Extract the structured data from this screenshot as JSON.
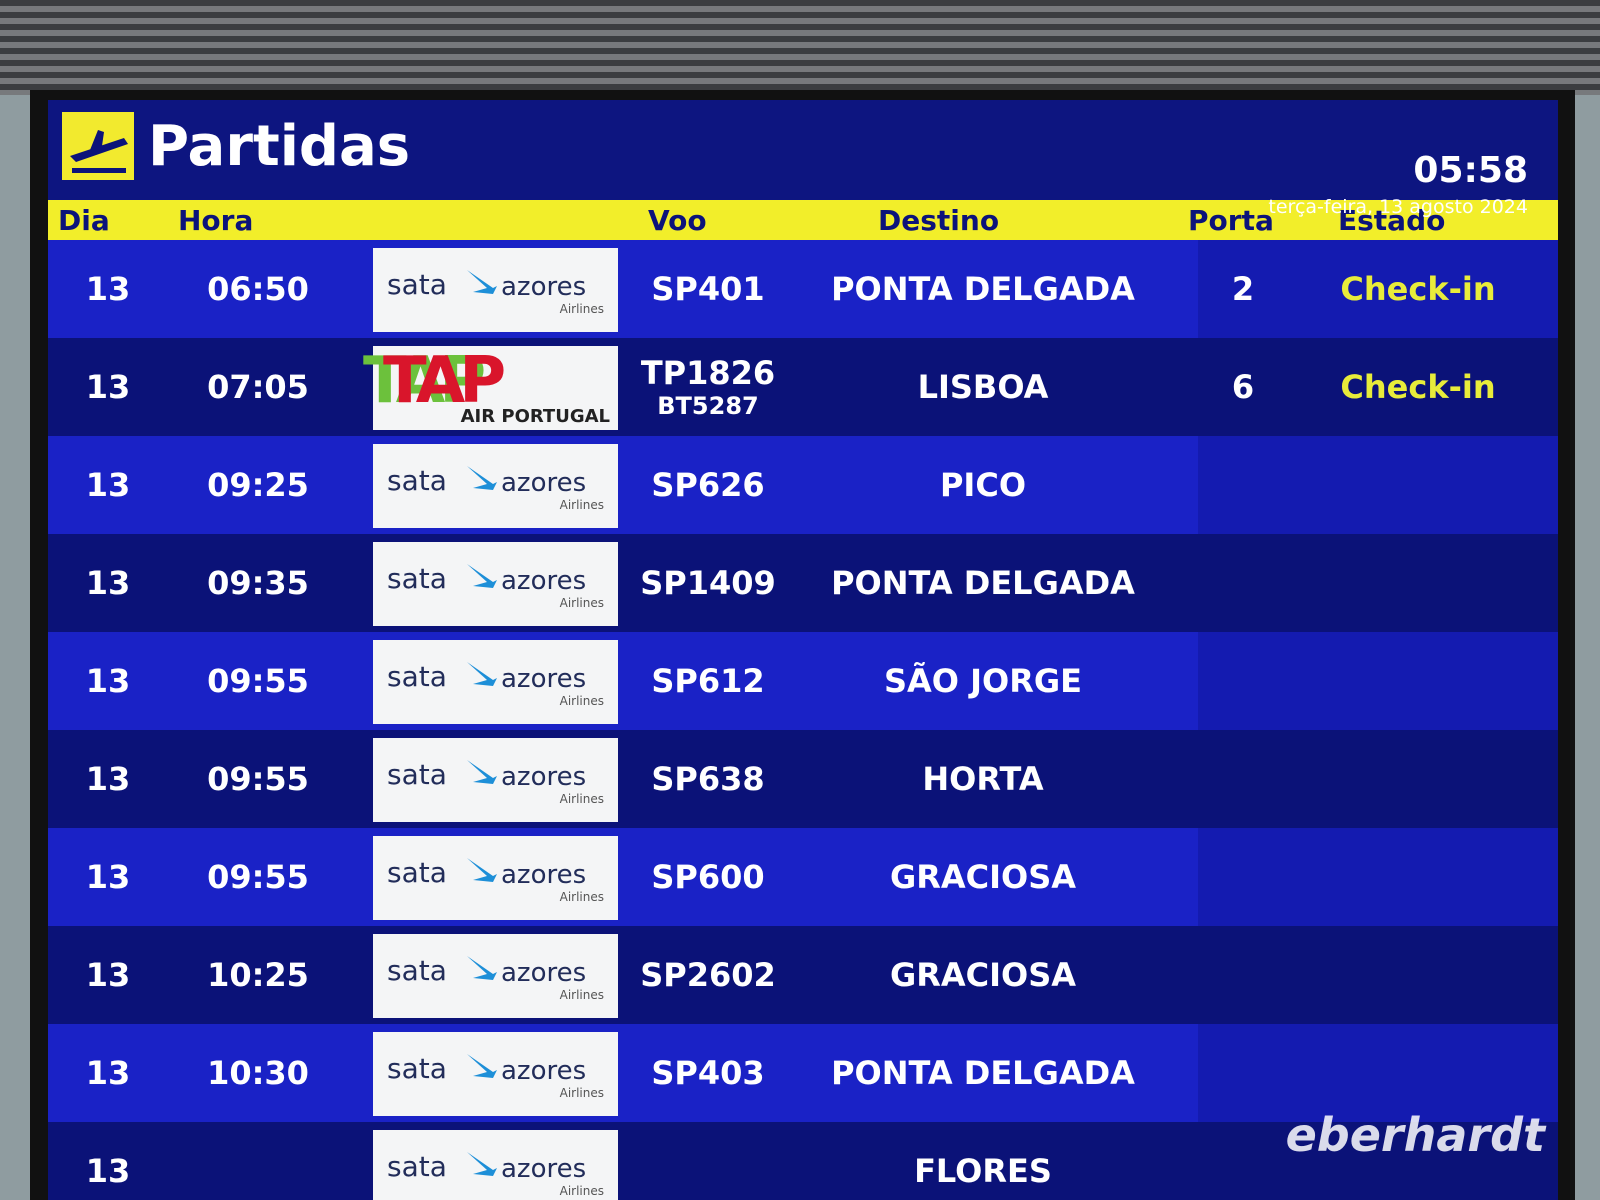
{
  "header": {
    "title": "Partidas",
    "time": "05:58",
    "date": "terça-feira, 13 agosto 2024"
  },
  "columns": [
    "Dia",
    "Hora",
    "Voo",
    "Destino",
    "Porta",
    "Estado"
  ],
  "rows": [
    {
      "day": "13",
      "time": "06:50",
      "logo": {
        "name": "sata",
        "brand": "azores",
        "sub": "Airlines"
      },
      "flights": [
        "SP401"
      ],
      "destination": "PONTA DELGADA",
      "gate": "2",
      "status": "Check-in"
    },
    {
      "day": "13",
      "time": "07:05",
      "logo": {
        "name": "TAP",
        "sub": "AIR PORTUGAL"
      },
      "flights": [
        "TP1826",
        "BT5287"
      ],
      "destination": "LISBOA",
      "gate": "6",
      "status": "Check-in"
    },
    {
      "day": "13",
      "time": "09:25",
      "logo": {
        "name": "sata",
        "brand": "azores",
        "sub": "Airlines"
      },
      "flights": [
        "SP626"
      ],
      "destination": "PICO"
    },
    {
      "day": "13",
      "time": "09:35",
      "logo": {
        "name": "sata",
        "brand": "azores",
        "sub": "Airlines"
      },
      "flights": [
        "SP1409"
      ],
      "destination": "PONTA DELGADA"
    },
    {
      "day": "13",
      "time": "09:55",
      "logo": {
        "name": "sata",
        "brand": "azores",
        "sub": "Airlines"
      },
      "flights": [
        "SP612"
      ],
      "destination": "SÃO JORGE"
    },
    {
      "day": "13",
      "time": "09:55",
      "logo": {
        "name": "sata",
        "brand": "azores",
        "sub": "Airlines"
      },
      "flights": [
        "SP638"
      ],
      "destination": "HORTA"
    },
    {
      "day": "13",
      "time": "09:55",
      "logo": {
        "name": "sata",
        "brand": "azores",
        "sub": "Airlines"
      },
      "flights": [
        "SP600"
      ],
      "destination": "GRACIOSA"
    },
    {
      "day": "13",
      "time": "10:25",
      "logo": {
        "name": "sata",
        "brand": "azores",
        "sub": "Airlines"
      },
      "flights": [
        "SP2602"
      ],
      "destination": "GRACIOSA"
    },
    {
      "day": "13",
      "time": "10:30",
      "logo": {
        "name": "sata",
        "brand": "azores",
        "sub": "Airlines"
      },
      "flights": [
        "SP403"
      ],
      "destination": "PONTA DELGADA"
    },
    {
      "day": "13",
      "logo": {
        "name": "sata",
        "brand": "azores",
        "sub": "Airlines"
      },
      "destination": "FLORES"
    }
  ],
  "watermark": "eberhardt"
}
